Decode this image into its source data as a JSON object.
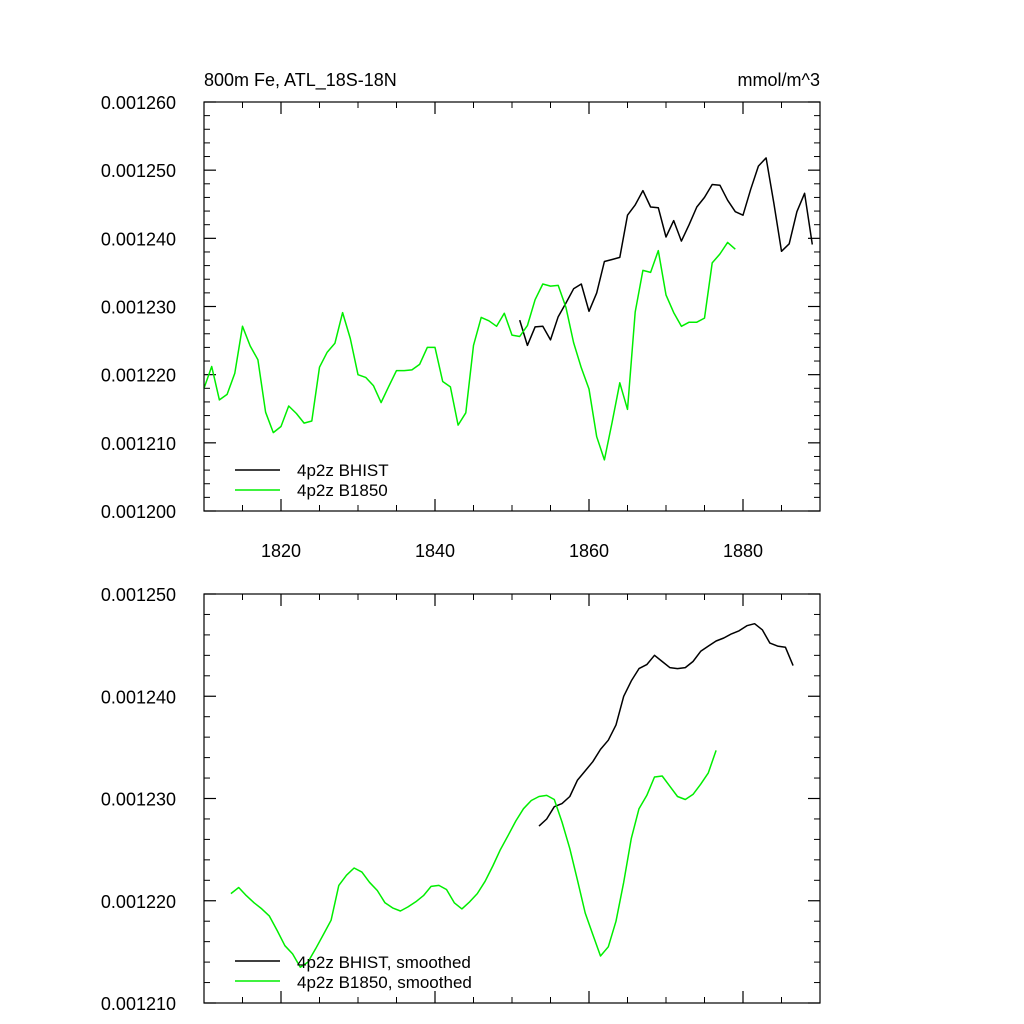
{
  "chart_data": [
    {
      "type": "line",
      "title": "800m Fe, ATL_18S-18N",
      "units": "mmol/m^3",
      "xlim": [
        1810,
        1890
      ],
      "ylim": [
        0.0012,
        0.00126
      ],
      "x_ticks": [
        1820,
        1840,
        1860,
        1880
      ],
      "x_tick_labels": [
        "1820",
        "1840",
        "1860",
        "1880"
      ],
      "y_ticks": [
        0.0012,
        0.00121,
        0.00122,
        0.00123,
        0.00124,
        0.00125,
        0.00126
      ],
      "y_tick_labels": [
        "0.001200",
        "0.001210",
        "0.001220",
        "0.001230",
        "0.001240",
        "0.001250",
        "0.001260"
      ],
      "legend_position": "bottom-left",
      "series": [
        {
          "name": "4p2z BHIST",
          "color": "#000000",
          "x": [
            1851,
            1852,
            1853,
            1854,
            1855,
            1856,
            1857,
            1858,
            1859,
            1860,
            1861,
            1862,
            1863,
            1864,
            1865,
            1866,
            1867,
            1868,
            1869,
            1870,
            1871,
            1872,
            1873,
            1874,
            1875,
            1876,
            1877,
            1878,
            1879,
            1880,
            1881,
            1882,
            1883,
            1884,
            1885,
            1886,
            1887,
            1888,
            1889
          ],
          "y": [
            0.001228,
            0.0012243,
            0.001227,
            0.0012271,
            0.0012251,
            0.0012285,
            0.0012305,
            0.0012326,
            0.0012333,
            0.0012293,
            0.001232,
            0.0012366,
            0.0012369,
            0.0012372,
            0.0012434,
            0.0012449,
            0.001247,
            0.0012446,
            0.0012445,
            0.0012402,
            0.0012426,
            0.0012396,
            0.001242,
            0.0012446,
            0.001246,
            0.0012479,
            0.0012478,
            0.0012456,
            0.0012439,
            0.0012434,
            0.0012472,
            0.0012506,
            0.0012518,
            0.0012452,
            0.0012381,
            0.0012392,
            0.0012439,
            0.0012466,
            0.0012391
          ]
        },
        {
          "name": "4p2z B1850",
          "color": "#00ee00",
          "x": [
            1810,
            1811,
            1812,
            1813,
            1814,
            1815,
            1816,
            1817,
            1818,
            1819,
            1820,
            1821,
            1822,
            1823,
            1824,
            1825,
            1826,
            1827,
            1828,
            1829,
            1830,
            1831,
            1832,
            1833,
            1834,
            1835,
            1836,
            1837,
            1838,
            1839,
            1840,
            1841,
            1842,
            1843,
            1844,
            1845,
            1846,
            1847,
            1848,
            1849,
            1850,
            1851,
            1852,
            1853,
            1854,
            1855,
            1856,
            1857,
            1858,
            1859,
            1860,
            1861,
            1862,
            1863,
            1864,
            1865,
            1866,
            1867,
            1868,
            1869,
            1870,
            1871,
            1872,
            1873,
            1874,
            1875,
            1876,
            1877,
            1878,
            1879
          ],
          "y": [
            0.001218,
            0.0012212,
            0.0012163,
            0.0012171,
            0.0012202,
            0.0012271,
            0.0012242,
            0.0012222,
            0.0012145,
            0.0012115,
            0.0012124,
            0.0012154,
            0.0012143,
            0.0012129,
            0.0012132,
            0.0012211,
            0.0012233,
            0.0012246,
            0.0012291,
            0.0012253,
            0.00122,
            0.0012196,
            0.0012184,
            0.0012159,
            0.0012183,
            0.0012206,
            0.0012206,
            0.0012207,
            0.0012215,
            0.001224,
            0.001224,
            0.001219,
            0.0012182,
            0.0012126,
            0.0012144,
            0.0012243,
            0.0012284,
            0.0012279,
            0.0012271,
            0.001229,
            0.0012258,
            0.0012256,
            0.0012272,
            0.001231,
            0.0012333,
            0.001233,
            0.0012331,
            0.0012299,
            0.0012247,
            0.001221,
            0.0012179,
            0.0012109,
            0.0012075,
            0.001213,
            0.0012188,
            0.0012149,
            0.0012292,
            0.0012353,
            0.001235,
            0.0012382,
            0.0012317,
            0.0012291,
            0.0012271,
            0.0012277,
            0.0012277,
            0.0012283,
            0.0012364,
            0.0012377,
            0.0012394,
            0.0012384
          ]
        }
      ]
    },
    {
      "type": "line",
      "xlim": [
        1810,
        1890
      ],
      "ylim": [
        0.00121,
        0.00125
      ],
      "x_ticks": [
        1820,
        1840,
        1860,
        1880
      ],
      "y_ticks": [
        0.00121,
        0.00122,
        0.00123,
        0.00124,
        0.00125
      ],
      "y_tick_labels": [
        "0.001210",
        "0.001220",
        "0.001230",
        "0.001240",
        "0.001250"
      ],
      "legend_position": "bottom-left",
      "series": [
        {
          "name": "4p2z BHIST, smoothed",
          "color": "#000000",
          "x": [
            1853.5,
            1854.5,
            1855.5,
            1856.5,
            1857.5,
            1858.5,
            1859.5,
            1860.5,
            1861.5,
            1862.5,
            1863.5,
            1864.5,
            1865.5,
            1866.5,
            1867.5,
            1868.5,
            1869.5,
            1870.5,
            1871.5,
            1872.5,
            1873.5,
            1874.5,
            1875.5,
            1876.5,
            1877.5,
            1878.5,
            1879.5,
            1880.5,
            1881.5,
            1882.5,
            1883.5,
            1884.5,
            1885.5,
            1886.5
          ],
          "y": [
            0.0012273,
            0.001228,
            0.0012292,
            0.0012295,
            0.0012302,
            0.0012318,
            0.0012327,
            0.0012336,
            0.0012348,
            0.0012357,
            0.0012372,
            0.00124,
            0.0012415,
            0.0012427,
            0.0012431,
            0.001244,
            0.0012434,
            0.0012428,
            0.0012427,
            0.0012428,
            0.0012434,
            0.0012444,
            0.0012449,
            0.0012454,
            0.0012457,
            0.0012461,
            0.0012464,
            0.0012469,
            0.0012471,
            0.0012465,
            0.0012452,
            0.0012449,
            0.0012448,
            0.001243
          ]
        },
        {
          "name": "4p2z B1850, smoothed",
          "color": "#00ee00",
          "x": [
            1813.5,
            1814.5,
            1815.5,
            1816.5,
            1817.5,
            1818.5,
            1819.5,
            1820.5,
            1821.5,
            1822.5,
            1823.5,
            1824.5,
            1825.5,
            1826.5,
            1827.5,
            1828.5,
            1829.5,
            1830.5,
            1831.5,
            1832.5,
            1833.5,
            1834.5,
            1835.5,
            1836.5,
            1837.5,
            1838.5,
            1839.5,
            1840.5,
            1841.5,
            1842.5,
            1843.5,
            1844.5,
            1845.5,
            1846.5,
            1847.5,
            1848.5,
            1849.5,
            1850.5,
            1851.5,
            1852.5,
            1853.5,
            1854.5,
            1855.5,
            1856.5,
            1857.5,
            1858.5,
            1859.5,
            1860.5,
            1861.5,
            1862.5,
            1863.5,
            1864.5,
            1865.5,
            1866.5,
            1867.5,
            1868.5,
            1869.5,
            1870.5,
            1871.5,
            1872.5,
            1873.5,
            1874.5,
            1875.5,
            1876.5
          ],
          "y": [
            0.0012207,
            0.0012213,
            0.0012205,
            0.0012198,
            0.0012192,
            0.0012185,
            0.0012171,
            0.0012156,
            0.0012148,
            0.0012135,
            0.001214,
            0.0012153,
            0.0012167,
            0.0012181,
            0.0012215,
            0.0012225,
            0.0012232,
            0.0012228,
            0.0012218,
            0.001221,
            0.0012198,
            0.0012193,
            0.001219,
            0.0012194,
            0.0012199,
            0.0012205,
            0.0012214,
            0.0012215,
            0.0012211,
            0.0012198,
            0.0012192,
            0.0012199,
            0.0012207,
            0.0012219,
            0.0012234,
            0.001225,
            0.0012264,
            0.0012278,
            0.001229,
            0.0012298,
            0.0012302,
            0.0012303,
            0.0012299,
            0.0012277,
            0.0012251,
            0.001222,
            0.0012188,
            0.0012167,
            0.0012146,
            0.0012155,
            0.001218,
            0.0012218,
            0.0012261,
            0.001229,
            0.0012303,
            0.0012321,
            0.0012322,
            0.0012312,
            0.0012302,
            0.0012299,
            0.0012304,
            0.0012314,
            0.0012325,
            0.0012347
          ]
        }
      ]
    }
  ]
}
